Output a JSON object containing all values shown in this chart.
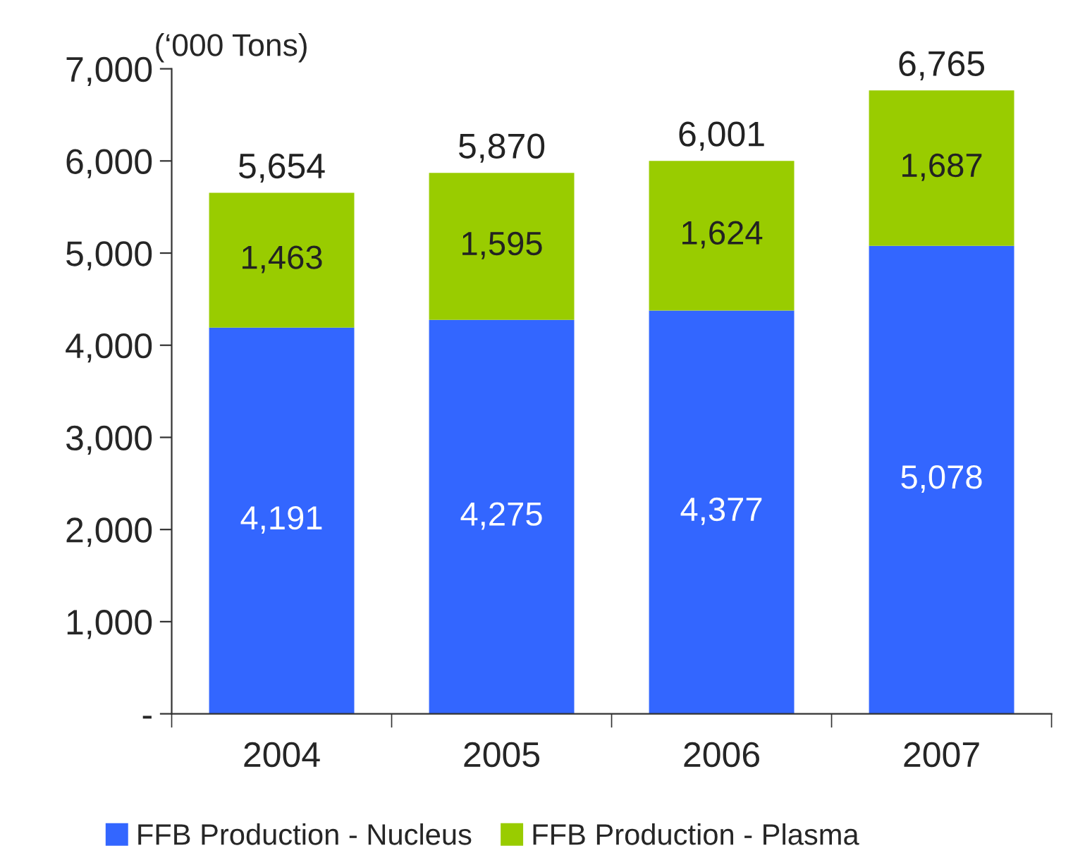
{
  "chart_data": {
    "type": "bar",
    "stacked": true,
    "ylabel": "(‘000 Tons)",
    "categories": [
      "2004",
      "2005",
      "2006",
      "2007"
    ],
    "series": [
      {
        "name": "FFB Production - Nucleus",
        "color": "#3366ff",
        "values": [
          4191,
          4275,
          4377,
          5078
        ],
        "value_labels": [
          "4,191",
          "4,275",
          "4,377",
          "5,078"
        ]
      },
      {
        "name": "FFB Production - Plasma",
        "color": "#99cc00",
        "values": [
          1463,
          1595,
          1624,
          1687
        ],
        "value_labels": [
          "1,463",
          "1,595",
          "1,624",
          "1,687"
        ]
      }
    ],
    "totals": [
      "5,654",
      "5,870",
      "6,001",
      "6,765"
    ],
    "ylim": [
      0,
      7000
    ],
    "yticks": [
      {
        "value": 0,
        "label": "-"
      },
      {
        "value": 1000,
        "label": "1,000"
      },
      {
        "value": 2000,
        "label": "2,000"
      },
      {
        "value": 3000,
        "label": "3,000"
      },
      {
        "value": 4000,
        "label": "4,000"
      },
      {
        "value": 5000,
        "label": "5,000"
      },
      {
        "value": 6000,
        "label": "6,000"
      },
      {
        "value": 7000,
        "label": "7,000"
      }
    ],
    "legend": "bottom",
    "grid": false
  }
}
